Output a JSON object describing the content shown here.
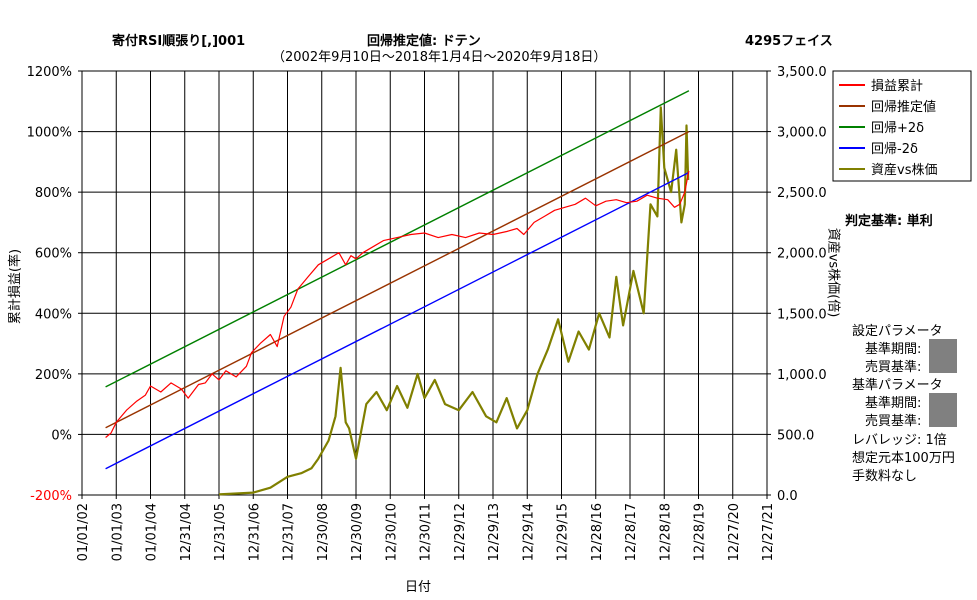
{
  "header": {
    "title": "寄付RSI順張り[,]001",
    "method": "回帰推定値: ドテン",
    "company": "4295フェイス",
    "period": "（2002年9月10日～2018年1月4日～2020年9月18日）"
  },
  "chart_data": {
    "type": "line",
    "xlabel": "日付",
    "ylabel_left": "累計損益(率)",
    "ylabel_right": "資産vs株価(倍)",
    "x_ticks": [
      "01/01/02",
      "01/01/03",
      "01/01/04",
      "12/31/04",
      "12/31/05",
      "12/31/06",
      "12/31/07",
      "12/30/08",
      "12/30/09",
      "12/30/10",
      "12/30/11",
      "12/29/12",
      "12/29/13",
      "12/29/14",
      "12/29/15",
      "12/28/16",
      "12/28/17",
      "12/28/18",
      "12/28/19",
      "12/27/20",
      "12/27/21"
    ],
    "y_left_ticks": [
      "1200%",
      "1000%",
      "800%",
      "600%",
      "400%",
      "200%",
      "0%",
      "-200%"
    ],
    "y_left_lim": [
      -200,
      1200
    ],
    "y_right_ticks": [
      "3,500.0",
      "3,000.0",
      "2,500.0",
      "2,000.0",
      "1,500.0",
      "1,000.0",
      "500.0",
      "0.0"
    ],
    "y_right_lim": [
      0,
      3500
    ],
    "x_year_range": [
      2002.0,
      2022.0
    ],
    "grid": true,
    "legend_position": "right",
    "series": [
      {
        "name": "損益累計",
        "color": "#ff0000",
        "axis": "left",
        "x": [
          2002.69,
          2002.85,
          2003.0,
          2003.3,
          2003.6,
          2003.85,
          2004.0,
          2004.3,
          2004.6,
          2004.9,
          2005.1,
          2005.4,
          2005.6,
          2005.8,
          2006.0,
          2006.2,
          2006.5,
          2006.8,
          2006.95,
          2007.2,
          2007.5,
          2007.7,
          2007.9,
          2008.1,
          2008.3,
          2008.6,
          2008.9,
          2009.2,
          2009.5,
          2009.7,
          2009.85,
          2010.0,
          2010.2,
          2010.5,
          2010.8,
          2011.2,
          2011.6,
          2012.0,
          2012.4,
          2012.8,
          2013.2,
          2013.6,
          2014.0,
          2014.4,
          2014.7,
          2014.9,
          2015.2,
          2015.5,
          2015.8,
          2016.1,
          2016.4,
          2016.7,
          2017.0,
          2017.3,
          2017.6,
          2017.9,
          2018.2,
          2018.5,
          2018.8,
          2019.1,
          2019.3,
          2019.45,
          2019.6,
          2019.7,
          2019.72
        ],
        "y": [
          -10,
          5,
          40,
          80,
          110,
          130,
          160,
          140,
          170,
          150,
          120,
          165,
          170,
          200,
          180,
          210,
          190,
          225,
          270,
          300,
          330,
          290,
          390,
          420,
          480,
          520,
          560,
          580,
          600,
          560,
          590,
          580,
          600,
          620,
          640,
          650,
          660,
          665,
          650,
          660,
          650,
          665,
          660,
          670,
          680,
          660,
          700,
          720,
          740,
          750,
          760,
          780,
          755,
          770,
          775,
          765,
          770,
          790,
          780,
          775,
          750,
          760,
          800,
          860,
          870
        ]
      },
      {
        "name": "回帰推定値",
        "color": "#993300",
        "axis": "left",
        "x": [
          2002.69,
          2019.72
        ],
        "y": [
          22,
          1000
        ]
      },
      {
        "name": "回帰+2δ",
        "color": "#008000",
        "axis": "left",
        "x": [
          2002.69,
          2019.72
        ],
        "y": [
          157,
          1135
        ]
      },
      {
        "name": "回帰-2δ",
        "color": "#0000ff",
        "axis": "left",
        "x": [
          2002.69,
          2019.72
        ],
        "y": [
          -113,
          865
        ]
      },
      {
        "name": "資産vs株価",
        "color": "#808000",
        "axis": "right",
        "x": [
          2006.0,
          2007.0,
          2007.5,
          2008.0,
          2008.4,
          2008.7,
          2008.9,
          2009.2,
          2009.4,
          2009.55,
          2009.6,
          2009.7,
          2009.8,
          2010.0,
          2010.3,
          2010.6,
          2010.9,
          2011.2,
          2011.5,
          2011.8,
          2012.0,
          2012.3,
          2012.6,
          2013.0,
          2013.4,
          2013.8,
          2014.1,
          2014.4,
          2014.7,
          2015.0,
          2015.3,
          2015.6,
          2015.9,
          2016.2,
          2016.5,
          2016.8,
          2017.1,
          2017.4,
          2017.6,
          2017.8,
          2018.1,
          2018.4,
          2018.6,
          2018.8,
          2018.9,
          2019.0,
          2019.2,
          2019.35,
          2019.5,
          2019.6,
          2019.65,
          2019.7
        ],
        "y": [
          5,
          20,
          60,
          150,
          180,
          220,
          300,
          450,
          650,
          1050,
          900,
          600,
          550,
          300,
          750,
          850,
          700,
          900,
          720,
          1000,
          800,
          950,
          750,
          700,
          850,
          650,
          600,
          800,
          550,
          700,
          1000,
          1200,
          1450,
          1100,
          1350,
          1200,
          1500,
          1300,
          1800,
          1400,
          1850,
          1500,
          2400,
          2300,
          3200,
          2700,
          2500,
          2850,
          2250,
          2400,
          3050,
          2600
        ]
      }
    ]
  },
  "side": {
    "criteria": "判定基準: 単利",
    "setting_params": "設定パラメータ",
    "base_period": "基準期間:",
    "buy_sell": "売買基準:",
    "base_params": "基準パラメータ",
    "leverage": "レバレッジ: 1倍",
    "capital": "想定元本100万円",
    "fee": "手数料なし"
  }
}
